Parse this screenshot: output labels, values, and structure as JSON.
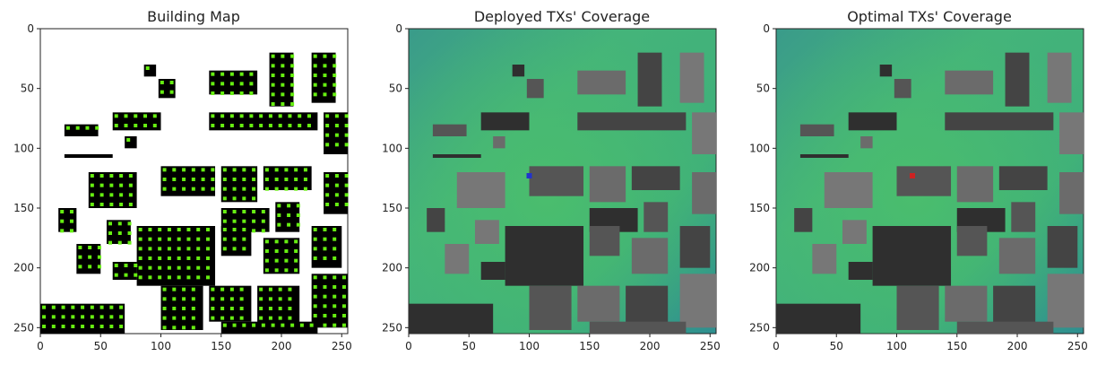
{
  "chart_data": [
    {
      "type": "heatmap",
      "title": "Building Map",
      "xlim": [
        0,
        255
      ],
      "ylim": [
        255,
        0
      ],
      "xticks": [
        0,
        50,
        100,
        150,
        200,
        250
      ],
      "yticks": [
        0,
        50,
        100,
        150,
        200,
        250
      ],
      "grid": false,
      "colormap": "binary",
      "marker_color": "#66ee11"
    },
    {
      "type": "heatmap",
      "title": "Deployed TXs' Coverage",
      "xlim": [
        0,
        255
      ],
      "ylim": [
        255,
        0
      ],
      "xticks": [
        0,
        50,
        100,
        150,
        200,
        250
      ],
      "yticks": [
        0,
        50,
        100,
        150,
        200,
        250
      ],
      "grid": false,
      "colormap": "viridis",
      "tx_color": "#2233cc",
      "tx_position": [
        100,
        123
      ]
    },
    {
      "type": "heatmap",
      "title": "Optimal TXs' Coverage",
      "xlim": [
        0,
        255
      ],
      "ylim": [
        255,
        0
      ],
      "xticks": [
        0,
        50,
        100,
        150,
        200,
        250
      ],
      "yticks": [
        0,
        50,
        100,
        150,
        200,
        250
      ],
      "grid": false,
      "colormap": "viridis",
      "tx_color": "#cc2222",
      "tx_position": [
        113,
        123
      ]
    }
  ]
}
